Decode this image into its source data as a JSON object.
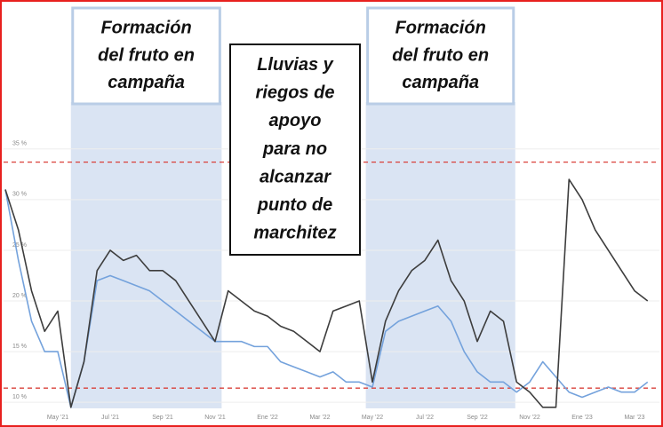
{
  "chart_data": {
    "type": "line",
    "categories": [
      null,
      null,
      null,
      null,
      "May '21",
      null,
      null,
      null,
      "Jul '21",
      null,
      null,
      null,
      "Sep '21",
      null,
      null,
      null,
      "Nov '21",
      null,
      null,
      null,
      "Ene '22",
      null,
      null,
      null,
      "Mar '22",
      null,
      null,
      null,
      "May '22",
      null,
      null,
      null,
      "Jul '22",
      null,
      null,
      null,
      "Sep '22",
      null,
      null,
      null,
      "Nov '22",
      null,
      null,
      null,
      "Ene '23",
      null,
      null,
      null,
      "Mar '23",
      null
    ],
    "series": [
      {
        "color": "#3d3d3d",
        "values": [
          31,
          27,
          21,
          17,
          19,
          9.5,
          14,
          23,
          25,
          24,
          24.5,
          23,
          23,
          22,
          20,
          18,
          16,
          21,
          20,
          19,
          18.5,
          17.5,
          17,
          16,
          15,
          19,
          19.5,
          20,
          12,
          18,
          21,
          23,
          24,
          26,
          22,
          20,
          16,
          19,
          18,
          12,
          11,
          9.5,
          9.5,
          32,
          30,
          27,
          25,
          23,
          21,
          20
        ]
      },
      {
        "color": "#74a2dc",
        "values": [
          31,
          24,
          18,
          15,
          15,
          9.5,
          14,
          22,
          22.5,
          22,
          21.5,
          21,
          20,
          19,
          18,
          17,
          16,
          16,
          16,
          15.5,
          15.5,
          14,
          13.5,
          13,
          12.5,
          13,
          12,
          12,
          11.5,
          17,
          18,
          18.5,
          19,
          19.5,
          18,
          15,
          13,
          12,
          12,
          11,
          12,
          14,
          12.5,
          11,
          10.5,
          11,
          11.5,
          11,
          11,
          12
        ]
      }
    ],
    "ylim": [
      9.4,
      49
    ],
    "yticks": [
      {
        "value": 10,
        "label": "10 %"
      },
      {
        "value": 15,
        "label": "15 %"
      },
      {
        "value": 20,
        "label": "20 %"
      },
      {
        "value": 25,
        "label": "25 %"
      },
      {
        "value": 30,
        "label": "30 %"
      },
      {
        "value": 35,
        "label": "35 %"
      }
    ],
    "thresholds": [
      33.7,
      11.4
    ],
    "threshold_color": "#d9403a",
    "band_color": "#dae4f3",
    "annotations": [
      {
        "start": 5,
        "end": 16.5,
        "lines": [
          "Formación",
          "del fruto en",
          "campaña"
        ]
      },
      {
        "start": 27.5,
        "end": 38.9,
        "lines": [
          "Formación",
          "del fruto en",
          "campaña"
        ]
      }
    ],
    "note": {
      "lines": [
        "Lluvias y",
        "riegos de",
        "apoyo",
        "para no",
        "alcanzar",
        "punto de",
        "marchitez"
      ]
    }
  }
}
